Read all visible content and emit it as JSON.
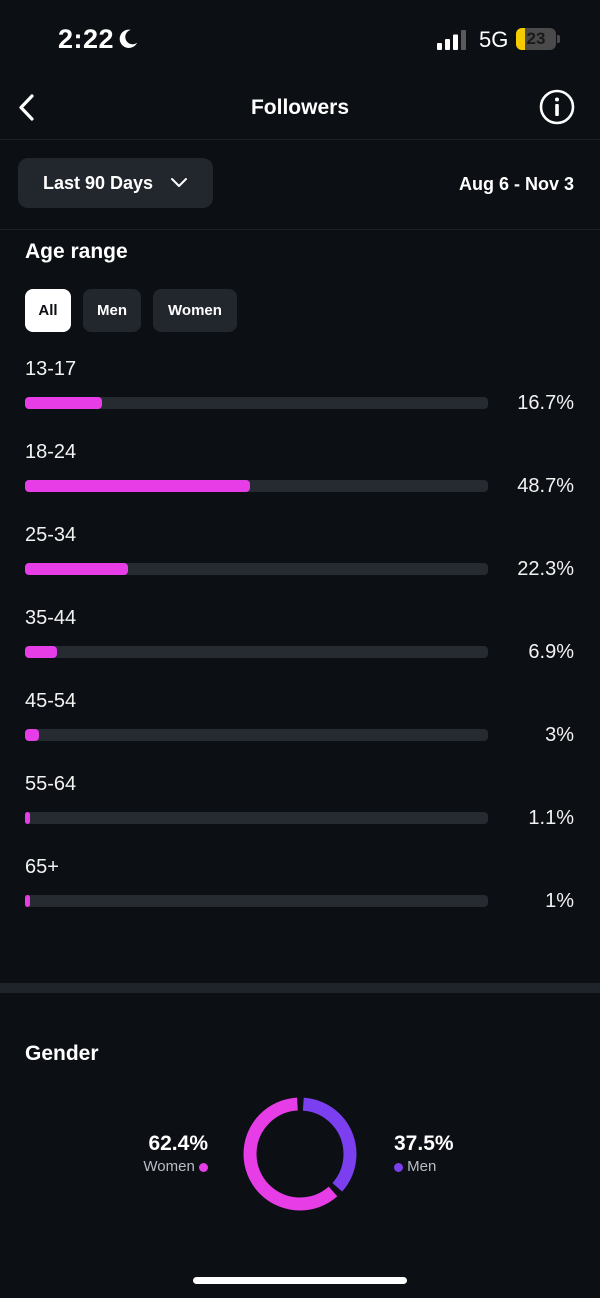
{
  "status_bar": {
    "time": "2:22",
    "network": "5G",
    "battery_level": "23",
    "battery_percent": 23,
    "battery_color": "#f5cc00"
  },
  "header": {
    "title": "Followers",
    "back_icon": "chevron-left-icon",
    "info_icon": "info-icon"
  },
  "filters": {
    "range_label": "Last 90 Days",
    "date_range": "Aug 6 - Nov 3"
  },
  "age_range": {
    "title": "Age range",
    "segments": [
      {
        "label": "All",
        "active": true
      },
      {
        "label": "Men",
        "active": false
      },
      {
        "label": "Women",
        "active": false
      }
    ],
    "bar_color": "#e63de6",
    "rows": [
      {
        "label": "13-17",
        "value": 16.7,
        "display": "16.7%"
      },
      {
        "label": "18-24",
        "value": 48.7,
        "display": "48.7%"
      },
      {
        "label": "25-34",
        "value": 22.3,
        "display": "22.3%"
      },
      {
        "label": "35-44",
        "value": 6.9,
        "display": "6.9%"
      },
      {
        "label": "45-54",
        "value": 3,
        "display": "3%"
      },
      {
        "label": "55-64",
        "value": 1.1,
        "display": "1.1%"
      },
      {
        "label": "65+",
        "value": 1,
        "display": "1%"
      }
    ]
  },
  "gender": {
    "title": "Gender",
    "women": {
      "value": 62.4,
      "display": "62.4%",
      "label": "Women",
      "color": "#e63de6"
    },
    "men": {
      "value": 37.5,
      "display": "37.5%",
      "label": "Men",
      "color": "#7b3ff0"
    }
  }
}
